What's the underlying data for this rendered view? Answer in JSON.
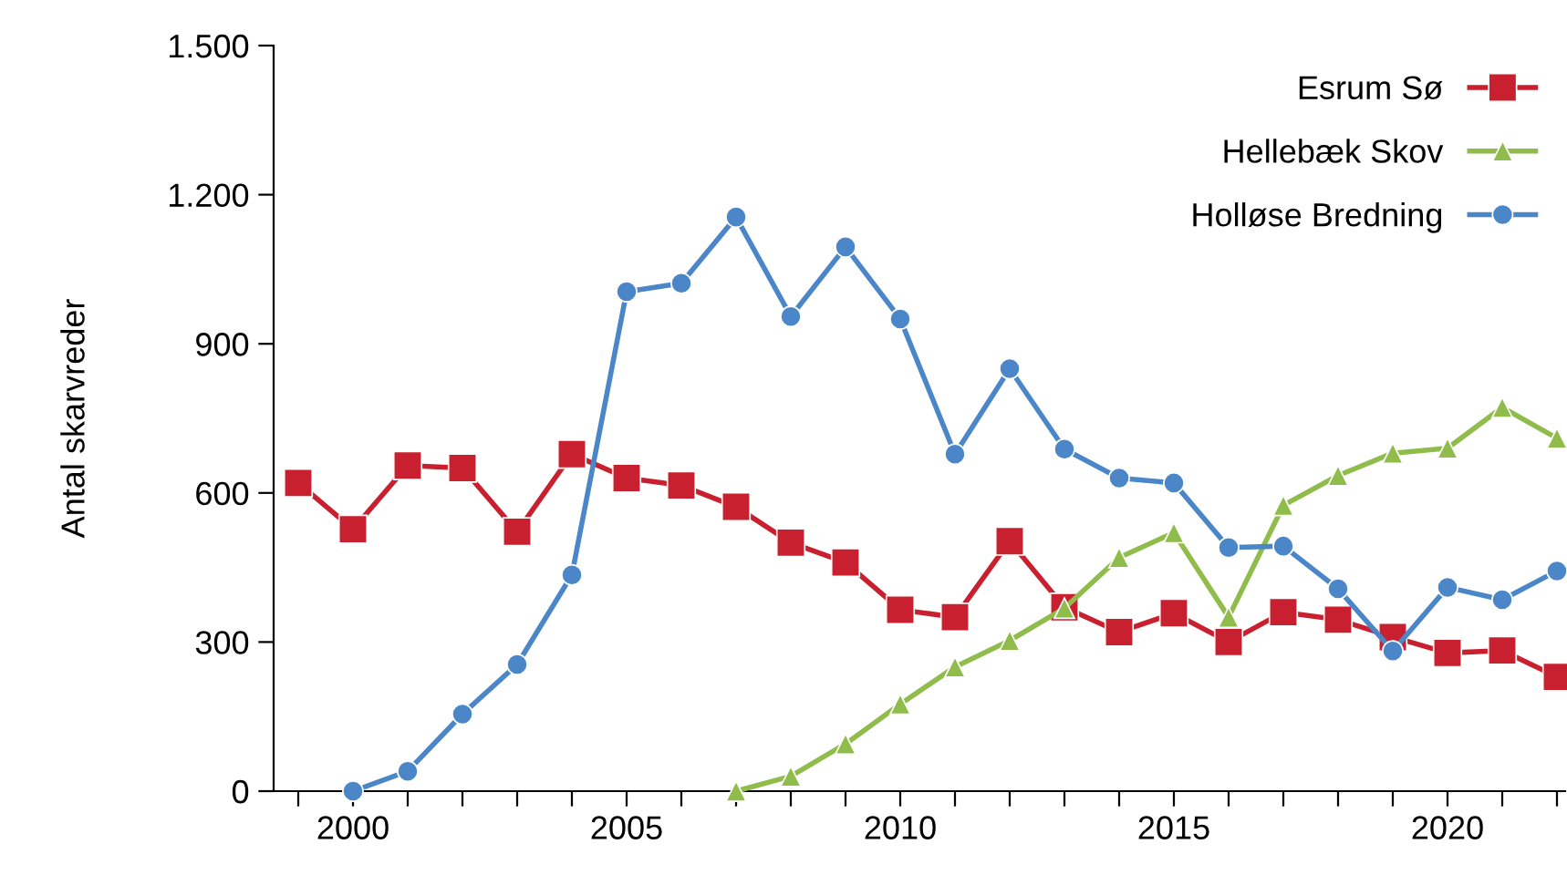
{
  "chart_data": {
    "type": "line",
    "ylabel": "Antal skarvreder",
    "xlim": [
      1998.55,
      2022.15
    ],
    "ylim": [
      0,
      1500
    ],
    "yticks": [
      {
        "value": 0,
        "label": "0"
      },
      {
        "value": 300,
        "label": "300"
      },
      {
        "value": 600,
        "label": "600"
      },
      {
        "value": 900,
        "label": "900"
      },
      {
        "value": 1200,
        "label": "1.200"
      },
      {
        "value": 1500,
        "label": "1.500"
      }
    ],
    "xticks": [
      {
        "value": 1999,
        "label": null
      },
      2000,
      {
        "value": 2001,
        "label": null
      },
      {
        "value": 2002,
        "label": null
      },
      {
        "value": 2003,
        "label": null
      },
      {
        "value": 2004,
        "label": null
      },
      2005,
      {
        "value": 2006,
        "label": null
      },
      {
        "value": 2007,
        "label": null
      },
      {
        "value": 2008,
        "label": null
      },
      {
        "value": 2009,
        "label": null
      },
      2010,
      {
        "value": 2011,
        "label": null
      },
      {
        "value": 2012,
        "label": null
      },
      {
        "value": 2013,
        "label": null
      },
      {
        "value": 2014,
        "label": null
      },
      2015,
      {
        "value": 2016,
        "label": null
      },
      {
        "value": 2017,
        "label": null
      },
      {
        "value": 2018,
        "label": null
      },
      {
        "value": 2019,
        "label": null
      },
      2020,
      {
        "value": 2021,
        "label": null
      },
      {
        "value": 2022,
        "label": null
      }
    ],
    "grid": false,
    "legend": "top right",
    "line_style": "solid",
    "series": [
      {
        "name": "Esrum Sø",
        "color": "#c8202f",
        "marker": "square",
        "x": [
          1999,
          2000,
          2001,
          2002,
          2003,
          2004,
          2005,
          2006,
          2007,
          2008,
          2009,
          2010,
          2011,
          2012,
          2013,
          2014,
          2015,
          2016,
          2017,
          2018,
          2019,
          2020,
          2021,
          2022
        ],
        "values": [
          620,
          527,
          655,
          650,
          522,
          678,
          630,
          615,
          572,
          500,
          460,
          365,
          350,
          503,
          370,
          320,
          358,
          300,
          360,
          345,
          310,
          278,
          283,
          230
        ]
      },
      {
        "name": "Hellebæk Skov",
        "color": "#8fbc4a",
        "marker": "triangle",
        "x": [
          2007,
          2008,
          2009,
          2010,
          2011,
          2012,
          2013,
          2014,
          2015,
          2016,
          2017,
          2018,
          2019,
          2020,
          2021,
          2022
        ],
        "values": [
          0,
          30,
          95,
          175,
          250,
          303,
          368,
          470,
          520,
          350,
          575,
          635,
          680,
          690,
          772,
          710
        ]
      },
      {
        "name": "Holløse Bredning",
        "color": "#4a86c8",
        "marker": "circle",
        "x": [
          2000,
          2001,
          2002,
          2003,
          2004,
          2005,
          2006,
          2007,
          2008,
          2009,
          2010,
          2011,
          2012,
          2013,
          2014,
          2015,
          2016,
          2017,
          2018,
          2019,
          2020,
          2021,
          2022
        ],
        "values": [
          0,
          40,
          155,
          255,
          435,
          1005,
          1022,
          1155,
          955,
          1095,
          950,
          678,
          850,
          688,
          630,
          620,
          490,
          493,
          407,
          282,
          410,
          385,
          443
        ]
      }
    ]
  }
}
